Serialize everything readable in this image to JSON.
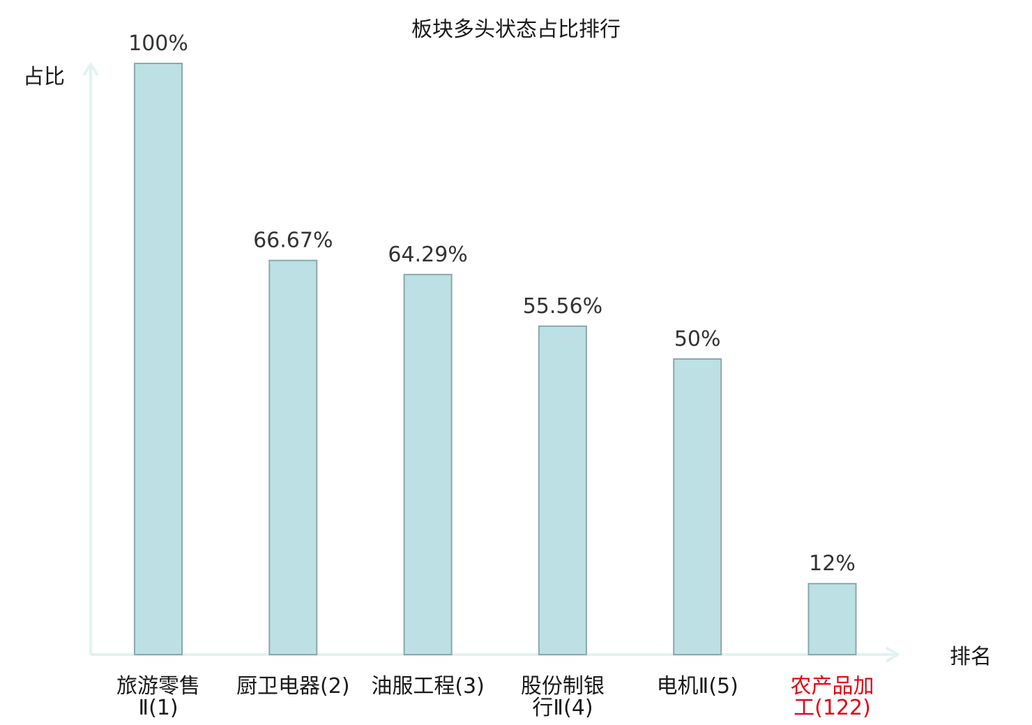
{
  "chart_data": {
    "type": "bar",
    "title": "板块多头状态占比排行",
    "ylabel": "占比",
    "xlabel": "排名",
    "ylim": [
      0,
      100
    ],
    "grid": false,
    "categories": [
      [
        "旅游零售",
        "Ⅱ(1)"
      ],
      [
        "厨卫电器(2)"
      ],
      [
        "油服工程(3)"
      ],
      [
        "股份制银",
        "行Ⅱ(4)"
      ],
      [
        "电机Ⅱ(5)"
      ],
      [
        "农产品加",
        "工(122)"
      ]
    ],
    "values": [
      100,
      66.67,
      64.29,
      55.56,
      50,
      12
    ],
    "value_labels": [
      "100%",
      "66.67%",
      "64.29%",
      "55.56%",
      "50%",
      "12%"
    ],
    "highlight_index": 5,
    "colors": {
      "bar_fill": "#bce0e3",
      "bar_stroke": "#8aa8ab",
      "axis": "#e0f3f1",
      "highlight_text": "#e60012",
      "text": "#1a1a1a"
    }
  }
}
